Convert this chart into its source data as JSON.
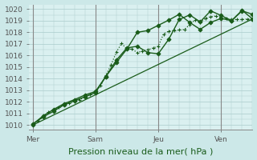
{
  "background_color": "#cce8e8",
  "plot_bg_color": "#daf0f0",
  "grid_color": "#aacccc",
  "line_color": "#1a5c1a",
  "title": "Pression niveau de la mer( hPa )",
  "ylabel_ticks": [
    1010,
    1011,
    1012,
    1013,
    1014,
    1015,
    1016,
    1017,
    1018,
    1019,
    1020
  ],
  "ylim": [
    1009.6,
    1020.4
  ],
  "day_labels": [
    "Mer",
    "Sam",
    "Jeu",
    "Ven"
  ],
  "day_positions": [
    0,
    36,
    72,
    108
  ],
  "xlim": [
    -2,
    126
  ],
  "vline_positions": [
    0,
    36,
    72,
    108
  ],
  "vline_color": "#888888",
  "title_fontsize": 8,
  "tick_fontsize": 6.5,
  "series": [
    {
      "x": [
        0,
        3,
        6,
        9,
        12,
        15,
        18,
        21,
        24,
        27,
        30,
        33,
        36,
        39,
        42,
        45,
        48,
        51,
        54,
        57,
        60,
        63,
        66,
        69,
        72,
        75,
        78,
        81,
        84,
        87,
        90,
        93,
        96,
        99,
        102,
        105,
        108,
        111,
        114,
        117,
        120,
        123,
        126
      ],
      "y": [
        1010.0,
        1010.35,
        1010.7,
        1011.1,
        1011.35,
        1011.55,
        1011.75,
        1011.9,
        1012.05,
        1012.2,
        1012.4,
        1012.65,
        1012.85,
        1013.4,
        1014.3,
        1015.2,
        1016.3,
        1017.05,
        1016.55,
        1016.55,
        1016.25,
        1016.4,
        1016.5,
        1016.65,
        1016.8,
        1017.85,
        1018.1,
        1018.15,
        1018.2,
        1018.25,
        1018.65,
        1019.05,
        1018.85,
        1019.2,
        1019.35,
        1019.4,
        1019.25,
        1019.2,
        1019.1,
        1019.1,
        1019.1,
        1019.15,
        1019.15
      ],
      "style": ":",
      "marker": "+",
      "markersize": 3,
      "linewidth": 0.9
    },
    {
      "x": [
        0,
        6,
        12,
        18,
        24,
        30,
        36,
        42,
        48,
        54,
        60,
        66,
        72,
        78,
        84,
        90,
        96,
        102,
        108,
        114,
        120,
        126
      ],
      "y": [
        1010.05,
        1010.8,
        1011.35,
        1011.85,
        1012.2,
        1012.6,
        1012.9,
        1014.2,
        1015.6,
        1016.65,
        1016.8,
        1016.25,
        1016.15,
        1017.4,
        1019.1,
        1019.5,
        1018.9,
        1019.85,
        1019.45,
        1019.0,
        1019.9,
        1019.15
      ],
      "style": "-",
      "marker": "D",
      "markersize": 2.5,
      "linewidth": 1.0
    },
    {
      "x": [
        0,
        6,
        12,
        18,
        24,
        30,
        36,
        42,
        48,
        54,
        60,
        66,
        72,
        78,
        84,
        90,
        96,
        102,
        108,
        114,
        120,
        126
      ],
      "y": [
        1010.1,
        1010.7,
        1011.2,
        1011.75,
        1012.1,
        1012.45,
        1012.8,
        1014.2,
        1015.4,
        1016.55,
        1018.0,
        1018.15,
        1018.6,
        1019.05,
        1019.55,
        1018.85,
        1018.25,
        1018.85,
        1019.2,
        1019.0,
        1019.85,
        1019.55
      ],
      "style": "-",
      "marker": "D",
      "markersize": 2.5,
      "linewidth": 1.0
    },
    {
      "x": [
        0,
        126
      ],
      "y": [
        1010.0,
        1019.15
      ],
      "style": "-",
      "marker": null,
      "markersize": 0,
      "linewidth": 0.9
    }
  ]
}
